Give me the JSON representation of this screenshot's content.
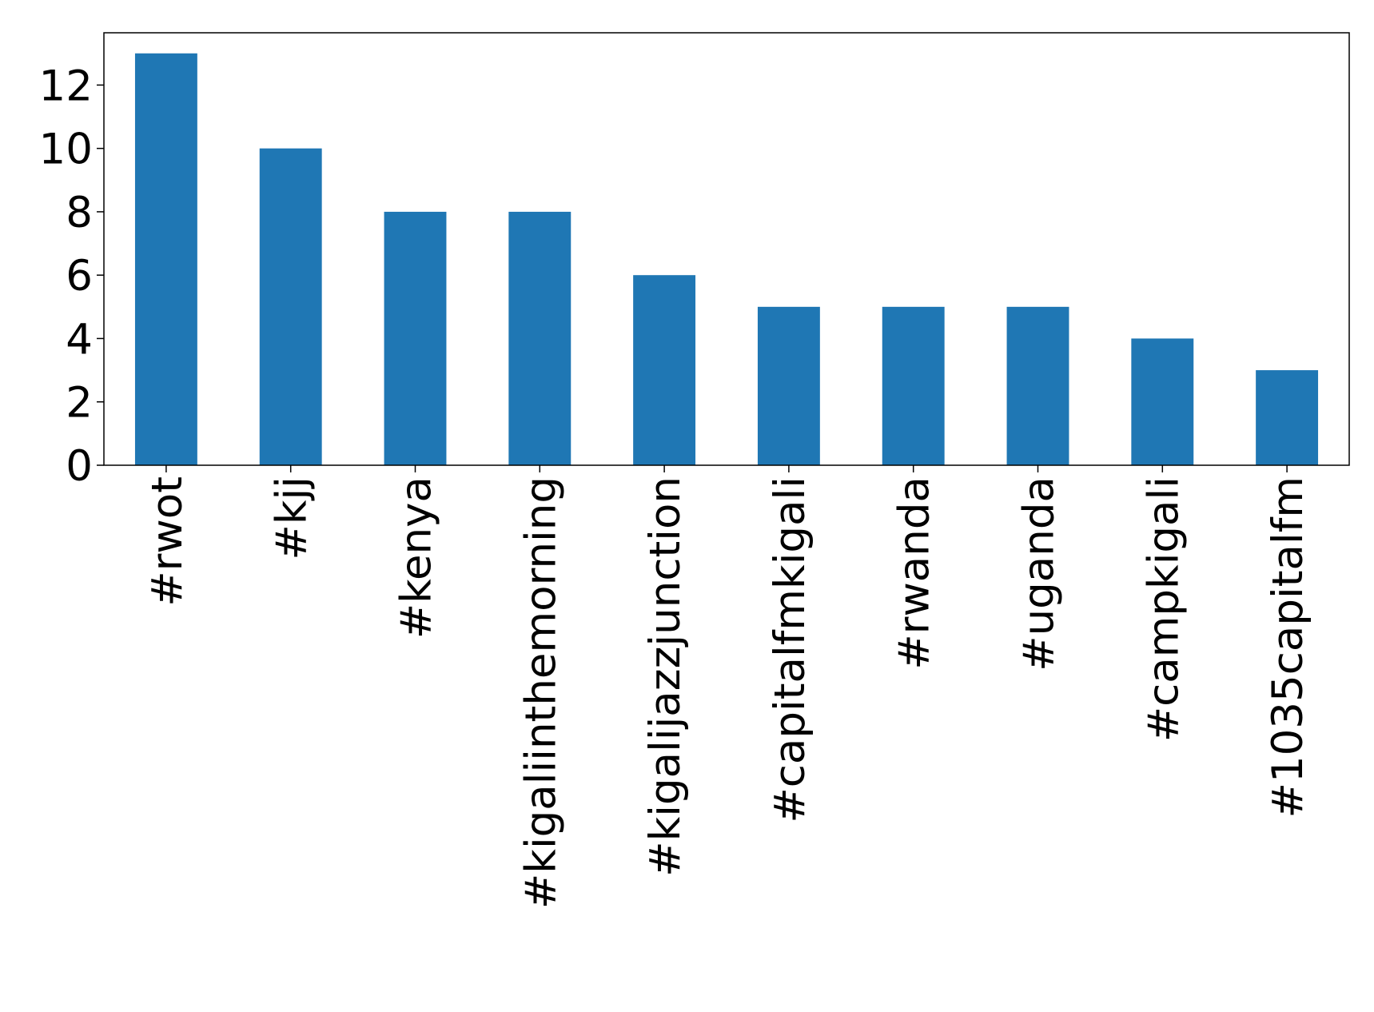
{
  "chart_data": {
    "type": "bar",
    "categories": [
      "#rwot",
      "#kjj",
      "#kenya",
      "#kigaliinthemorning",
      "#kigalijazzjunction",
      "#capitalfmkigali",
      "#rwanda",
      "#uganda",
      "#campkigali",
      "#1035capitalfm"
    ],
    "values": [
      13,
      10,
      8,
      8,
      6,
      5,
      5,
      5,
      4,
      3
    ],
    "color": "#1f77b4",
    "ylim": [
      0,
      13.65
    ],
    "yticks": [
      0,
      2,
      4,
      6,
      8,
      10,
      12
    ],
    "grid": false
  }
}
